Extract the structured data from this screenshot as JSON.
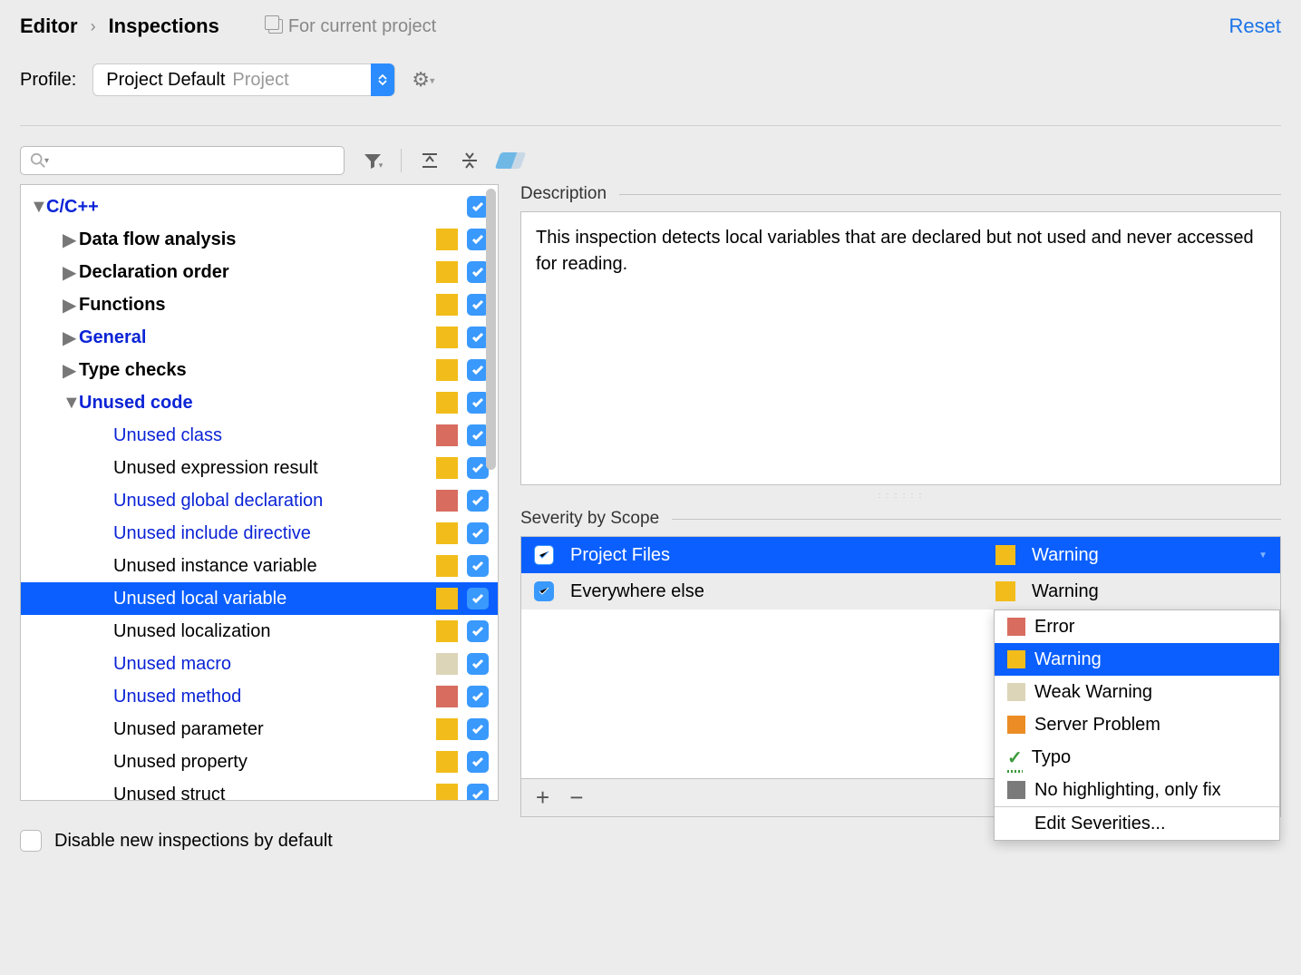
{
  "breadcrumb": {
    "a": "Editor",
    "b": "Inspections"
  },
  "for_current": "For current project",
  "reset": "Reset",
  "profile": {
    "label": "Profile:",
    "value": "Project Default",
    "scope": "Project"
  },
  "colors": {
    "yellow": "#f2bd1a",
    "red": "#d86c5f",
    "beige": "#dcd5b8",
    "orange": "#eb8c24",
    "gray": "#7a7a7a"
  },
  "tree": [
    {
      "label": "C/C++",
      "indent": 1,
      "tri": "down",
      "bold": true,
      "blue": true,
      "sev": null
    },
    {
      "label": "Data flow analysis",
      "indent": 2,
      "tri": "right",
      "bold": true,
      "sev": "yellow"
    },
    {
      "label": "Declaration order",
      "indent": 2,
      "tri": "right",
      "bold": true,
      "sev": "yellow"
    },
    {
      "label": "Functions",
      "indent": 2,
      "tri": "right",
      "bold": true,
      "sev": "yellow"
    },
    {
      "label": "General",
      "indent": 2,
      "tri": "right",
      "bold": true,
      "blue": true,
      "sev": "yellow"
    },
    {
      "label": "Type checks",
      "indent": 2,
      "tri": "right",
      "bold": true,
      "sev": "yellow"
    },
    {
      "label": "Unused code",
      "indent": 2,
      "tri": "down",
      "bold": true,
      "blue": true,
      "sev": "yellow"
    },
    {
      "label": "Unused class",
      "indent": 3,
      "blue": true,
      "sev": "red"
    },
    {
      "label": "Unused expression result",
      "indent": 3,
      "sev": "yellow"
    },
    {
      "label": "Unused global declaration",
      "indent": 3,
      "blue": true,
      "sev": "red"
    },
    {
      "label": "Unused include directive",
      "indent": 3,
      "blue": true,
      "sev": "yellow"
    },
    {
      "label": "Unused instance variable",
      "indent": 3,
      "sev": "yellow"
    },
    {
      "label": "Unused local variable",
      "indent": 3,
      "selected": true,
      "sev": "yellow"
    },
    {
      "label": "Unused localization",
      "indent": 3,
      "sev": "yellow"
    },
    {
      "label": "Unused macro",
      "indent": 3,
      "blue": true,
      "sev": "beige"
    },
    {
      "label": "Unused method",
      "indent": 3,
      "blue": true,
      "sev": "red"
    },
    {
      "label": "Unused parameter",
      "indent": 3,
      "sev": "yellow"
    },
    {
      "label": "Unused property",
      "indent": 3,
      "sev": "yellow"
    },
    {
      "label": "Unused struct",
      "indent": 3,
      "sev": "yellow"
    }
  ],
  "desc": {
    "title": "Description",
    "text": "This inspection detects local variables that are declared but not used and never accessed for reading."
  },
  "scope": {
    "title": "Severity by Scope",
    "rows": [
      {
        "name": "Project Files",
        "sev": "Warning",
        "sevColor": "yellow",
        "sel": true
      },
      {
        "name": "Everywhere else",
        "sev": "Warning",
        "sevColor": "yellow",
        "sel": false
      }
    ]
  },
  "dropdown": [
    {
      "label": "Error",
      "color": "red"
    },
    {
      "label": "Warning",
      "color": "yellow",
      "sel": true
    },
    {
      "label": "Weak Warning",
      "color": "beige"
    },
    {
      "label": "Server Problem",
      "color": "orange"
    },
    {
      "label": "Typo",
      "typo": true
    },
    {
      "label": "No highlighting, only fix",
      "color": "gray"
    }
  ],
  "dd_edit": "Edit Severities...",
  "footer": "Disable new inspections by default"
}
